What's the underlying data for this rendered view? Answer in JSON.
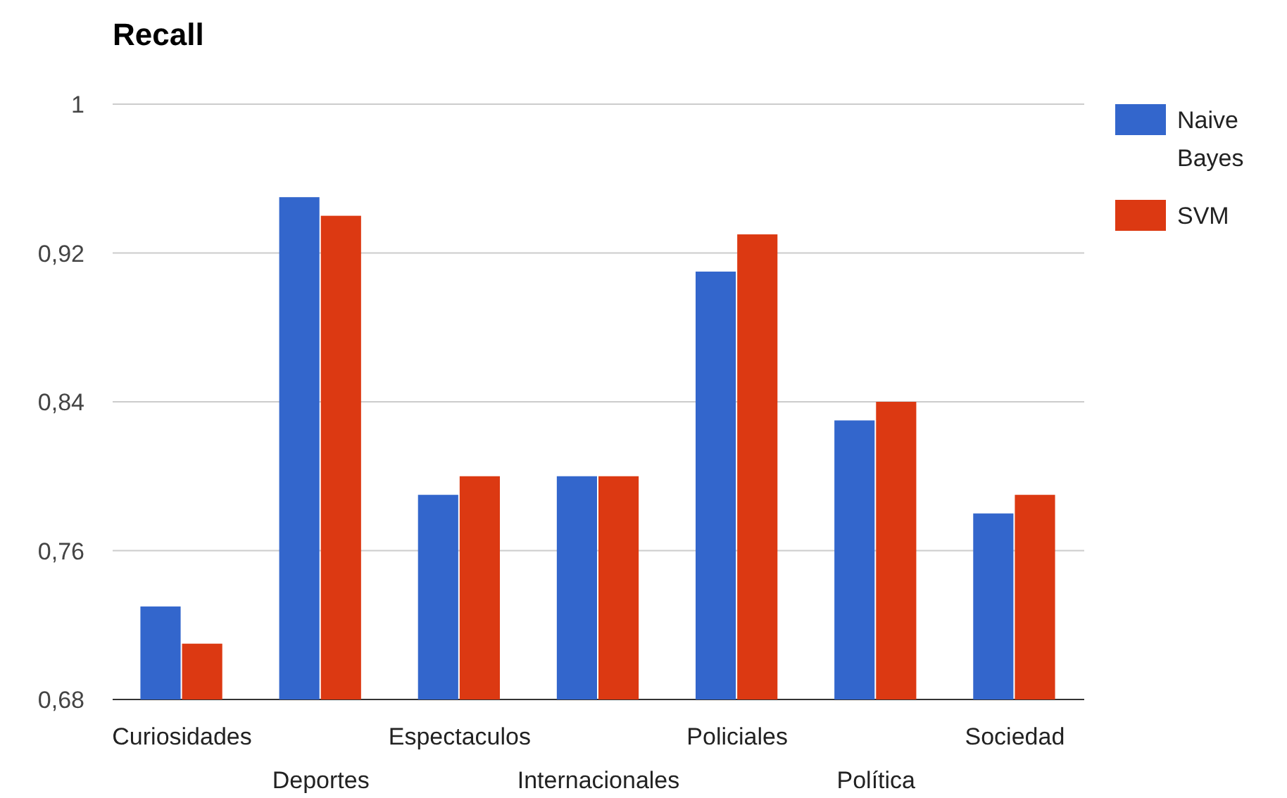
{
  "chart_data": {
    "type": "bar",
    "title": "Recall",
    "categories": [
      "Curiosidades",
      "Deportes",
      "Espectaculos",
      "Internacionales",
      "Policiales",
      "Política",
      "Sociedad"
    ],
    "series": [
      {
        "name": "Naive Bayes",
        "color": "#3366cc",
        "values": [
          0.73,
          0.95,
          0.79,
          0.8,
          0.91,
          0.83,
          0.78
        ]
      },
      {
        "name": "SVM",
        "color": "#dc3912",
        "values": [
          0.71,
          0.94,
          0.8,
          0.8,
          0.93,
          0.84,
          0.79
        ]
      }
    ],
    "ylim": [
      0.68,
      1
    ],
    "yticks": [
      {
        "value": 0.68,
        "label": "0,68"
      },
      {
        "value": 0.76,
        "label": "0,76"
      },
      {
        "value": 0.84,
        "label": "0,84"
      },
      {
        "value": 0.92,
        "label": "0,92"
      },
      1
    ],
    "grid": "y",
    "legend": "top right"
  }
}
